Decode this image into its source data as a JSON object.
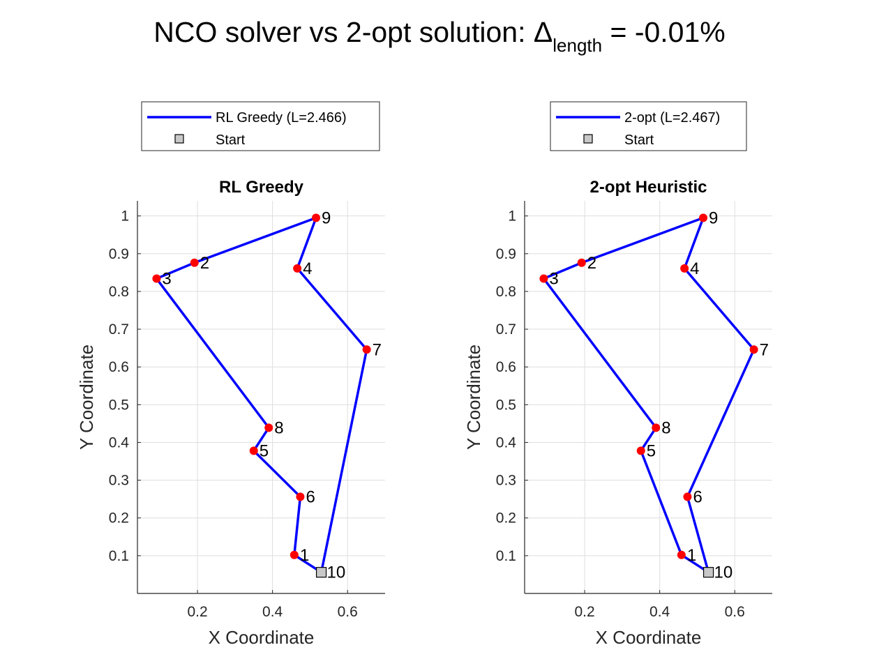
{
  "figure": {
    "title_main": "NCO solver vs 2-opt solution: Δ",
    "title_sub": "length",
    "title_tail": " = -0.01%"
  },
  "chart_data": [
    {
      "type": "line",
      "title": "RL Greedy",
      "xlabel": "X Coordinate",
      "ylabel": "Y Coordinate",
      "xlim": [
        0.04,
        0.7
      ],
      "ylim": [
        0.0,
        1.04
      ],
      "xticks": [
        0.2,
        0.4,
        0.6
      ],
      "xtick_labels": [
        "0.2",
        "0.4",
        "0.6"
      ],
      "yticks": [
        0.1,
        0.2,
        0.3,
        0.4,
        0.5,
        0.6,
        0.7,
        0.8,
        0.9,
        1.0
      ],
      "ytick_labels": [
        "0.1",
        "0.2",
        "0.3",
        "0.4",
        "0.5",
        "0.6",
        "0.7",
        "0.8",
        "0.9",
        "1"
      ],
      "grid": true,
      "legend_placement": "above-plot",
      "nodes": [
        {
          "id": "1",
          "x": 0.458,
          "y": 0.102
        },
        {
          "id": "2",
          "x": 0.192,
          "y": 0.876
        },
        {
          "id": "3",
          "x": 0.091,
          "y": 0.834
        },
        {
          "id": "4",
          "x": 0.466,
          "y": 0.861
        },
        {
          "id": "5",
          "x": 0.35,
          "y": 0.378
        },
        {
          "id": "6",
          "x": 0.474,
          "y": 0.256
        },
        {
          "id": "7",
          "x": 0.651,
          "y": 0.646
        },
        {
          "id": "8",
          "x": 0.39,
          "y": 0.439
        },
        {
          "id": "9",
          "x": 0.516,
          "y": 0.995
        },
        {
          "id": "10",
          "x": 0.53,
          "y": 0.056
        }
      ],
      "tour": [
        "10",
        "1",
        "6",
        "5",
        "8",
        "3",
        "2",
        "9",
        "4",
        "7",
        "10"
      ],
      "start": "10",
      "series": [
        {
          "name": "RL Greedy (L=2.466)",
          "color": "#0000ff"
        },
        {
          "name": "Start",
          "color": "#c8c8c8"
        }
      ],
      "node_color": "#ff0000"
    },
    {
      "type": "line",
      "title": "2-opt Heuristic",
      "xlabel": "X Coordinate",
      "ylabel": "Y Coordinate",
      "xlim": [
        0.04,
        0.7
      ],
      "ylim": [
        0.0,
        1.04
      ],
      "xticks": [
        0.2,
        0.4,
        0.6
      ],
      "xtick_labels": [
        "0.2",
        "0.4",
        "0.6"
      ],
      "yticks": [
        0.1,
        0.2,
        0.3,
        0.4,
        0.5,
        0.6,
        0.7,
        0.8,
        0.9,
        1.0
      ],
      "ytick_labels": [
        "0.1",
        "0.2",
        "0.3",
        "0.4",
        "0.5",
        "0.6",
        "0.7",
        "0.8",
        "0.9",
        "1"
      ],
      "grid": true,
      "legend_placement": "above-plot",
      "nodes": [
        {
          "id": "1",
          "x": 0.458,
          "y": 0.102
        },
        {
          "id": "2",
          "x": 0.192,
          "y": 0.876
        },
        {
          "id": "3",
          "x": 0.091,
          "y": 0.834
        },
        {
          "id": "4",
          "x": 0.466,
          "y": 0.861
        },
        {
          "id": "5",
          "x": 0.35,
          "y": 0.378
        },
        {
          "id": "6",
          "x": 0.474,
          "y": 0.256
        },
        {
          "id": "7",
          "x": 0.651,
          "y": 0.646
        },
        {
          "id": "8",
          "x": 0.39,
          "y": 0.439
        },
        {
          "id": "9",
          "x": 0.516,
          "y": 0.995
        },
        {
          "id": "10",
          "x": 0.53,
          "y": 0.056
        }
      ],
      "tour": [
        "10",
        "1",
        "5",
        "8",
        "3",
        "2",
        "9",
        "4",
        "7",
        "6",
        "10"
      ],
      "start": "10",
      "series": [
        {
          "name": "2-opt (L=2.467)",
          "color": "#0000ff"
        },
        {
          "name": "Start",
          "color": "#c8c8c8"
        }
      ],
      "node_color": "#ff0000"
    }
  ]
}
